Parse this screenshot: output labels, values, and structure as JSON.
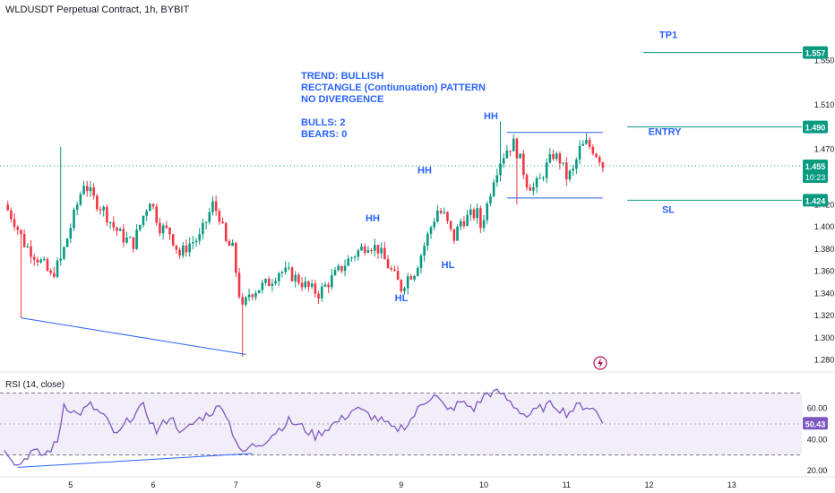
{
  "header": {
    "title": "WLDUSDT Perpetual Contract, 1h, BYBIT"
  },
  "rsi": {
    "label": "RSI (14, close)"
  },
  "annotations": {
    "lines": [
      "TREND: BULLISH",
      "RECTANGLE (Contiunuation) PATTERN",
      "NO DIVERGENCE",
      "",
      "BULLS: 2",
      "BEARS: 0"
    ]
  },
  "colors": {
    "up": "#089981",
    "down": "#f23645",
    "blue": "#2962ff",
    "rsi": "#7e57c2",
    "level": "#089981"
  },
  "chart_data": [
    {
      "type": "candlestick",
      "title": "WLDUSDT Perpetual Contract, 1h, BYBIT",
      "x_ticks": [
        "5",
        "6",
        "7",
        "8",
        "9",
        "10",
        "11",
        "12",
        "13"
      ],
      "y_ticks": [
        1.28,
        1.3,
        1.32,
        1.34,
        1.36,
        1.38,
        1.4,
        1.42,
        1.47,
        1.51,
        1.55
      ],
      "ylim": [
        1.27,
        1.585
      ],
      "levels": [
        {
          "label": "TP1",
          "value": 1.557
        },
        {
          "label": "ENTRY",
          "value": 1.49
        },
        {
          "label": "SL",
          "value": 1.424
        }
      ],
      "current_price": 1.455,
      "countdown": "10:23",
      "swing_labels": [
        {
          "label": "HH",
          "price": 1.405
        },
        {
          "label": "HL",
          "price": 1.333
        },
        {
          "label": "HH",
          "price": 1.448
        },
        {
          "label": "HL",
          "price": 1.363
        },
        {
          "label": "HH",
          "price": 1.497
        }
      ],
      "anchors": [
        {
          "t": 0,
          "p": 1.42
        },
        {
          "t": 3,
          "p": 1.405
        },
        {
          "t": 6,
          "p": 1.385
        },
        {
          "t": 9,
          "p": 1.375
        },
        {
          "t": 12,
          "p": 1.365
        },
        {
          "t": 14,
          "p": 1.355
        },
        {
          "t": 17,
          "p": 1.37
        },
        {
          "t": 20,
          "p": 1.4
        },
        {
          "t": 22,
          "p": 1.42
        },
        {
          "t": 24,
          "p": 1.44
        },
        {
          "t": 27,
          "p": 1.425
        },
        {
          "t": 30,
          "p": 1.415
        },
        {
          "t": 33,
          "p": 1.4
        },
        {
          "t": 36,
          "p": 1.39
        },
        {
          "t": 39,
          "p": 1.385
        },
        {
          "t": 42,
          "p": 1.41
        },
        {
          "t": 44,
          "p": 1.425
        },
        {
          "t": 47,
          "p": 1.4
        },
        {
          "t": 50,
          "p": 1.395
        },
        {
          "t": 53,
          "p": 1.375
        },
        {
          "t": 56,
          "p": 1.385
        },
        {
          "t": 59,
          "p": 1.39
        },
        {
          "t": 61,
          "p": 1.405
        },
        {
          "t": 63,
          "p": 1.42
        },
        {
          "t": 65,
          "p": 1.41
        },
        {
          "t": 67,
          "p": 1.385
        },
        {
          "t": 69,
          "p": 1.38
        },
        {
          "t": 71,
          "p": 1.34
        },
        {
          "t": 72,
          "p": 1.325
        },
        {
          "t": 74,
          "p": 1.34
        },
        {
          "t": 77,
          "p": 1.345
        },
        {
          "t": 80,
          "p": 1.35
        },
        {
          "t": 83,
          "p": 1.36
        },
        {
          "t": 86,
          "p": 1.358
        },
        {
          "t": 89,
          "p": 1.352
        },
        {
          "t": 92,
          "p": 1.345
        },
        {
          "t": 95,
          "p": 1.34
        },
        {
          "t": 98,
          "p": 1.35
        },
        {
          "t": 101,
          "p": 1.36
        },
        {
          "t": 104,
          "p": 1.37
        },
        {
          "t": 107,
          "p": 1.378
        },
        {
          "t": 110,
          "p": 1.385
        },
        {
          "t": 113,
          "p": 1.38
        },
        {
          "t": 116,
          "p": 1.365
        },
        {
          "t": 118,
          "p": 1.355
        },
        {
          "t": 120,
          "p": 1.345
        },
        {
          "t": 122,
          "p": 1.355
        },
        {
          "t": 124,
          "p": 1.36
        },
        {
          "t": 126,
          "p": 1.375
        },
        {
          "t": 129,
          "p": 1.4
        },
        {
          "t": 131,
          "p": 1.415
        },
        {
          "t": 133,
          "p": 1.41
        },
        {
          "t": 135,
          "p": 1.395
        },
        {
          "t": 136,
          "p": 1.39
        },
        {
          "t": 138,
          "p": 1.405
        },
        {
          "t": 141,
          "p": 1.41
        },
        {
          "t": 143,
          "p": 1.412
        },
        {
          "t": 144,
          "p": 1.4
        },
        {
          "t": 146,
          "p": 1.42
        },
        {
          "t": 148,
          "p": 1.445
        },
        {
          "t": 150,
          "p": 1.46
        },
        {
          "t": 152,
          "p": 1.47
        },
        {
          "t": 154,
          "p": 1.475
        },
        {
          "t": 156,
          "p": 1.46
        },
        {
          "t": 158,
          "p": 1.44
        },
        {
          "t": 160,
          "p": 1.435
        },
        {
          "t": 162,
          "p": 1.442
        },
        {
          "t": 164,
          "p": 1.455
        },
        {
          "t": 166,
          "p": 1.465
        },
        {
          "t": 168,
          "p": 1.46
        },
        {
          "t": 170,
          "p": 1.445
        },
        {
          "t": 172,
          "p": 1.45
        },
        {
          "t": 174,
          "p": 1.47
        },
        {
          "t": 176,
          "p": 1.475
        },
        {
          "t": 178,
          "p": 1.47
        },
        {
          "t": 180,
          "p": 1.462
        },
        {
          "t": 181,
          "p": 1.455
        }
      ]
    },
    {
      "type": "line",
      "name": "RSI (14, close)",
      "y_ticks": [
        20.0,
        40.0,
        60.0
      ],
      "ylim": [
        17,
        83
      ],
      "current_value": 50.43,
      "bands": [
        30,
        70
      ],
      "anchors": [
        {
          "t": 0,
          "v": 35
        },
        {
          "t": 4,
          "v": 23
        },
        {
          "t": 8,
          "v": 32
        },
        {
          "t": 12,
          "v": 30
        },
        {
          "t": 16,
          "v": 38
        },
        {
          "t": 18,
          "v": 63
        },
        {
          "t": 22,
          "v": 56
        },
        {
          "t": 26,
          "v": 62
        },
        {
          "t": 30,
          "v": 55
        },
        {
          "t": 34,
          "v": 42
        },
        {
          "t": 38,
          "v": 54
        },
        {
          "t": 42,
          "v": 61
        },
        {
          "t": 46,
          "v": 45
        },
        {
          "t": 50,
          "v": 55
        },
        {
          "t": 54,
          "v": 44
        },
        {
          "t": 58,
          "v": 52
        },
        {
          "t": 62,
          "v": 57
        },
        {
          "t": 66,
          "v": 62
        },
        {
          "t": 69,
          "v": 45
        },
        {
          "t": 72,
          "v": 30
        },
        {
          "t": 74,
          "v": 35
        },
        {
          "t": 78,
          "v": 38
        },
        {
          "t": 82,
          "v": 45
        },
        {
          "t": 86,
          "v": 52
        },
        {
          "t": 90,
          "v": 48
        },
        {
          "t": 94,
          "v": 42
        },
        {
          "t": 98,
          "v": 48
        },
        {
          "t": 102,
          "v": 53
        },
        {
          "t": 106,
          "v": 60
        },
        {
          "t": 110,
          "v": 56
        },
        {
          "t": 114,
          "v": 52
        },
        {
          "t": 118,
          "v": 46
        },
        {
          "t": 122,
          "v": 50
        },
        {
          "t": 126,
          "v": 62
        },
        {
          "t": 130,
          "v": 70
        },
        {
          "t": 134,
          "v": 58
        },
        {
          "t": 138,
          "v": 64
        },
        {
          "t": 142,
          "v": 60
        },
        {
          "t": 146,
          "v": 70
        },
        {
          "t": 150,
          "v": 70
        },
        {
          "t": 154,
          "v": 62
        },
        {
          "t": 158,
          "v": 55
        },
        {
          "t": 162,
          "v": 60
        },
        {
          "t": 166,
          "v": 63
        },
        {
          "t": 170,
          "v": 57
        },
        {
          "t": 174,
          "v": 62
        },
        {
          "t": 177,
          "v": 61
        },
        {
          "t": 179,
          "v": 58
        },
        {
          "t": 181,
          "v": 50.43
        }
      ]
    }
  ]
}
